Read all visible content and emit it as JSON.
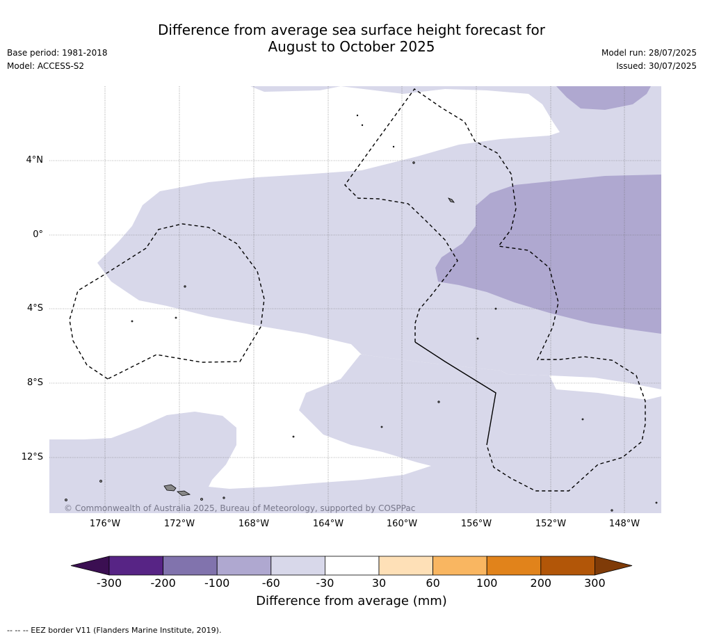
{
  "title_line1": "Difference from average sea surface height forecast for",
  "title_line2": "August to October 2025",
  "base_period": "Base period: 1981-2018",
  "model": "Model: ACCESS-S2",
  "model_run": "Model run: 28/07/2025",
  "issued": "Issued: 30/07/2025",
  "lat_labels": [
    "4°N",
    "0°",
    "4°S",
    "8°S",
    "12°S"
  ],
  "lon_labels": [
    "176°W",
    "172°W",
    "168°W",
    "164°W",
    "160°W",
    "156°W",
    "152°W",
    "148°W"
  ],
  "copyright": "© Commonwealth of Australia 2025, Bureau of Meteorology, supported by COSPPac",
  "colorbar": {
    "title": "Difference from average (mm)",
    "tick_labels": [
      "-300",
      "-200",
      "-100",
      "-60",
      "-30",
      "30",
      "60",
      "100",
      "200",
      "300"
    ],
    "colors": [
      "#3b0f52",
      "#572485",
      "#8173ad",
      "#afa8d0",
      "#d8d8ea",
      "#ffffff",
      "#fee0b7",
      "#f9b661",
      "#e1831b",
      "#b25608",
      "#7f3b08"
    ]
  },
  "footnote": "--  --  -- EEZ border V11 (Flanders Marine Institute, 2019).",
  "legend_colors": {
    "light_lavender": "#d8d8ea",
    "medium_lavender": "#afa8d0",
    "white": "#ffffff"
  }
}
